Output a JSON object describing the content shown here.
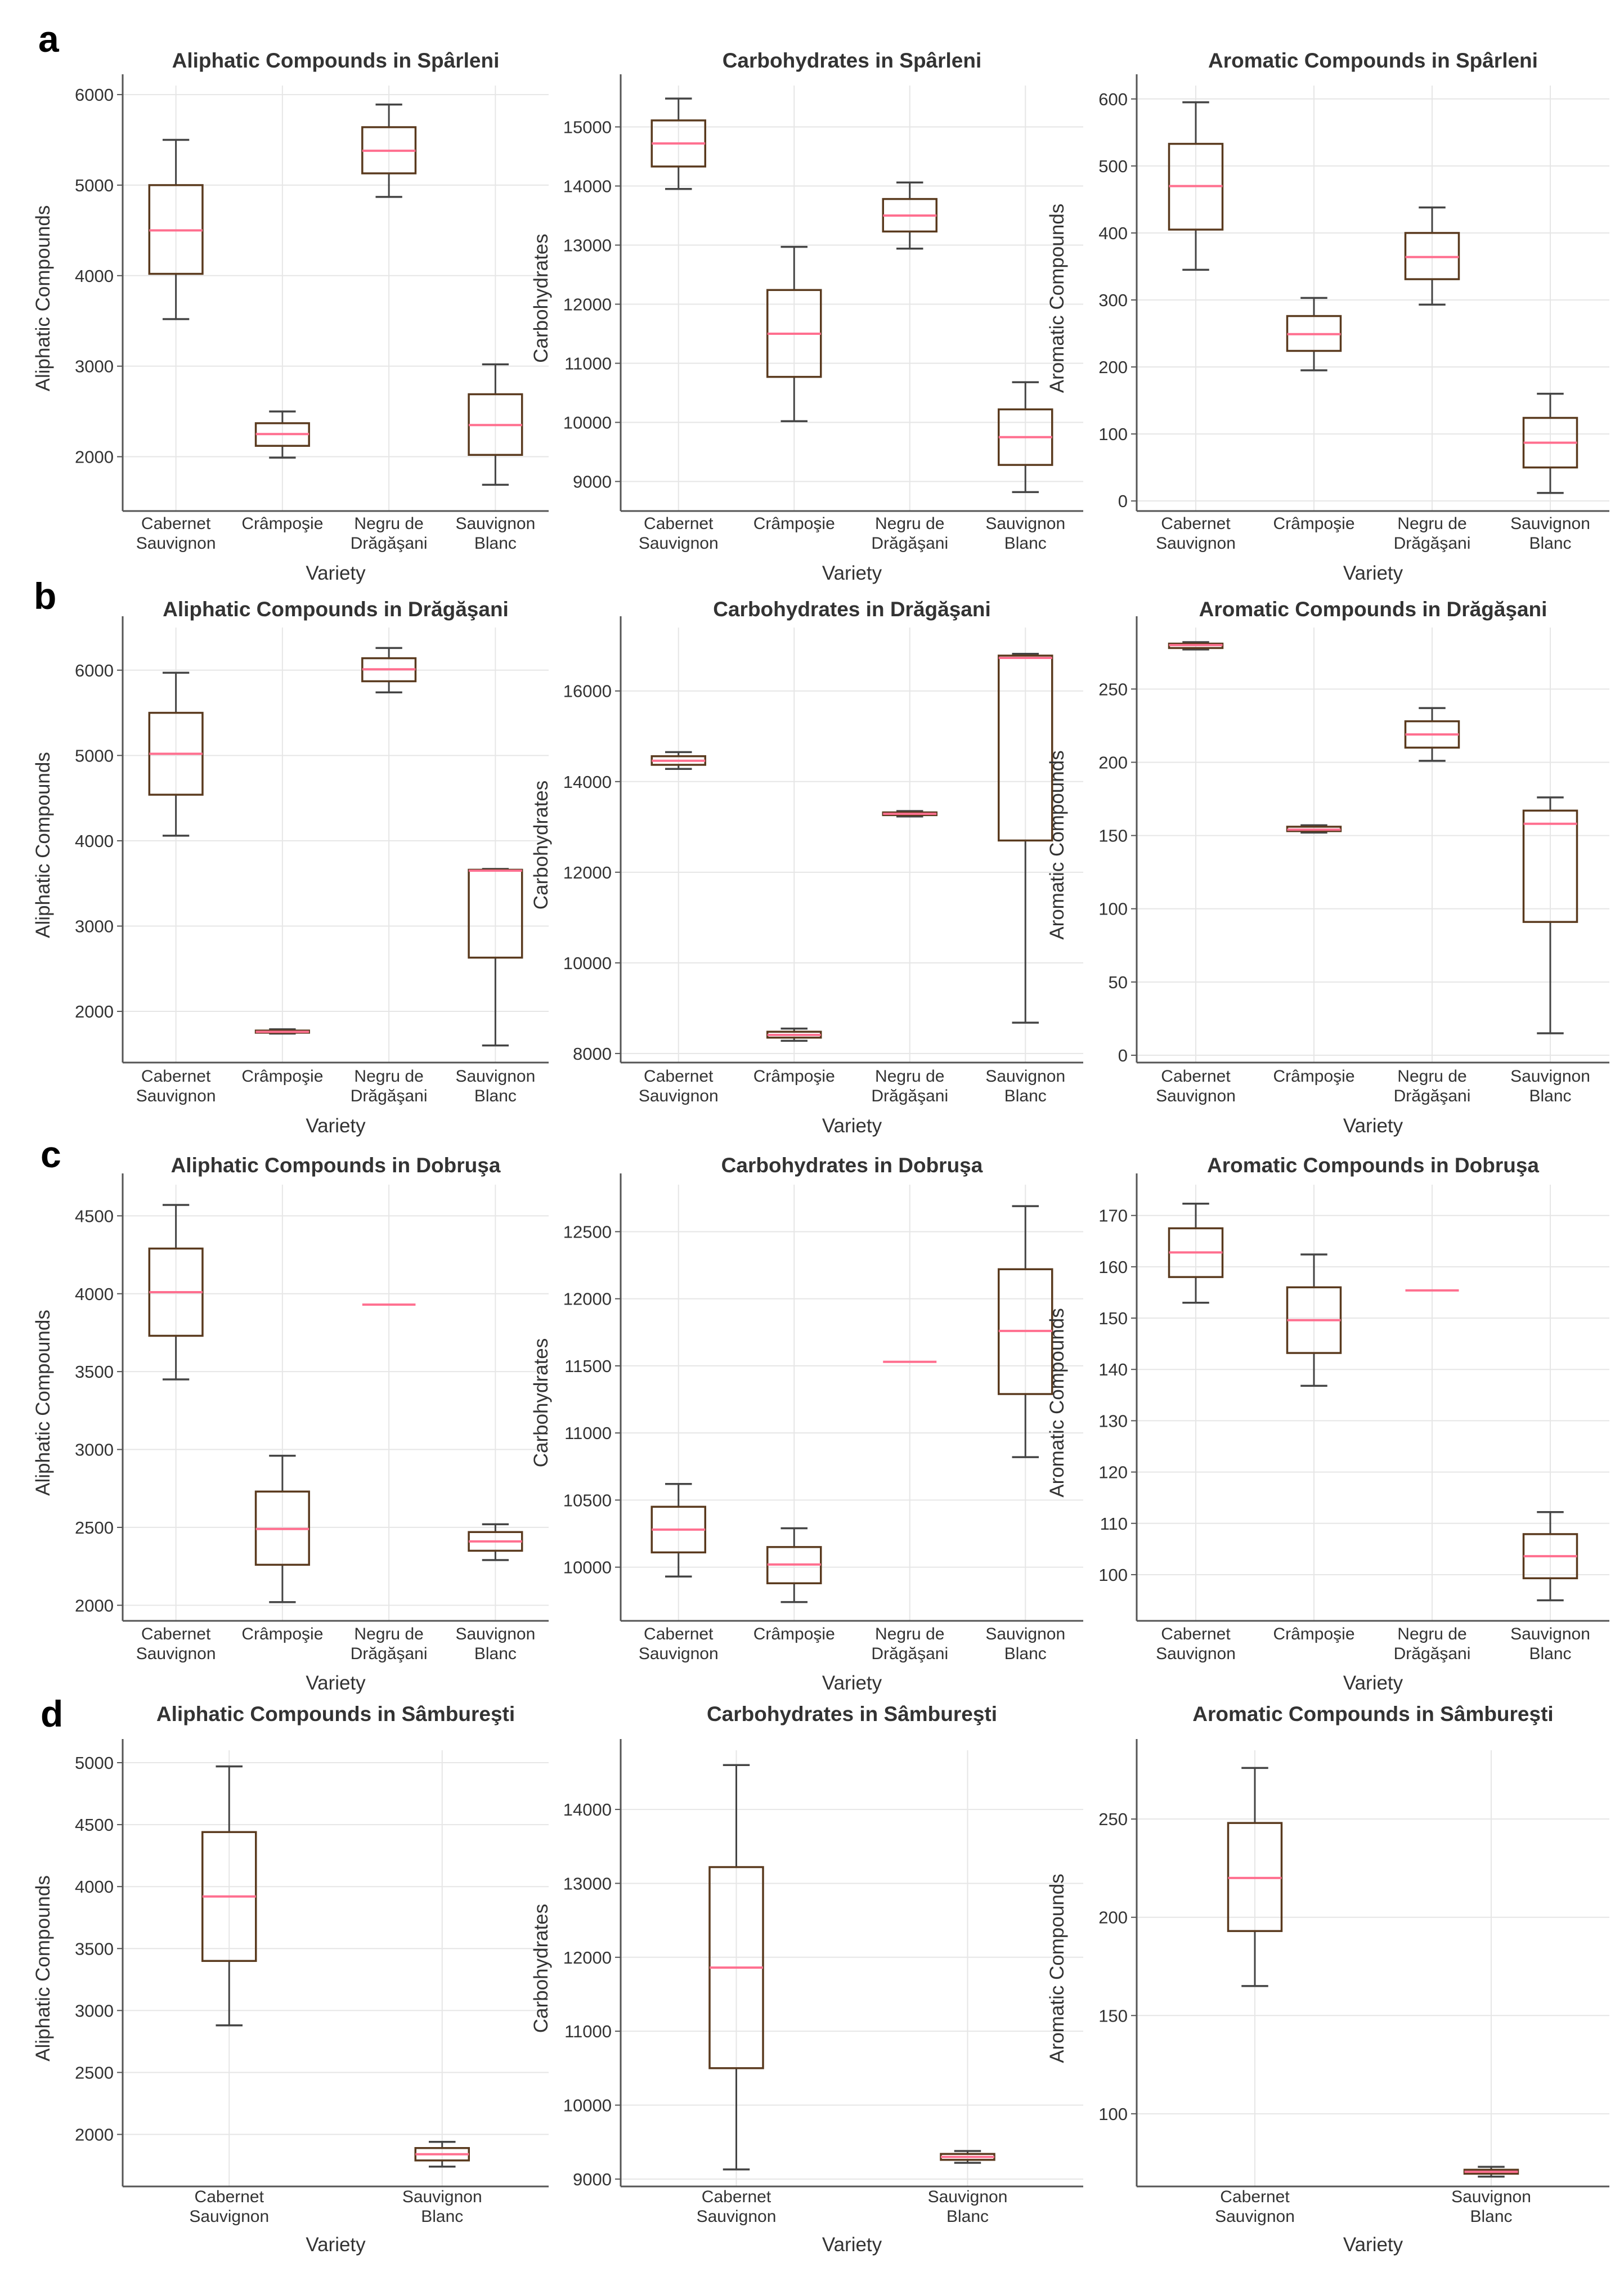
{
  "colors": {
    "box": "#5a3a1e",
    "median": "#ff6f8f",
    "whisker": "#444444",
    "grid": "#e6e6e6"
  },
  "chart_data": [
    {
      "panel": "a",
      "type": "box",
      "title": "Aliphatic Compounds in Spârleni",
      "xlabel": "Variety",
      "ylabel": "Aliphatic Compounds",
      "ylim": [
        1400,
        6100
      ],
      "yticks": [
        2000,
        3000,
        4000,
        5000,
        6000
      ],
      "categories": [
        "Cabernet Sauvignon",
        "Crâmpoşie",
        "Negru de Drăgăşani",
        "Sauvignon Blanc"
      ],
      "boxes": [
        {
          "min": 3520,
          "q1": 4020,
          "median": 4500,
          "q3": 5000,
          "max": 5500
        },
        {
          "min": 1990,
          "q1": 2120,
          "median": 2250,
          "q3": 2370,
          "max": 2500
        },
        {
          "min": 4870,
          "q1": 5130,
          "median": 5380,
          "q3": 5640,
          "max": 5890
        },
        {
          "min": 1690,
          "q1": 2020,
          "median": 2350,
          "q3": 2690,
          "max": 3020
        }
      ]
    },
    {
      "panel": "a",
      "type": "box",
      "title": "Carbohydrates in Spârleni",
      "xlabel": "Variety",
      "ylabel": "Carbohydrates",
      "ylim": [
        8500,
        15700
      ],
      "yticks": [
        9000,
        10000,
        11000,
        12000,
        13000,
        14000,
        15000
      ],
      "categories": [
        "Cabernet Sauvignon",
        "Crâmpoşie",
        "Negru de Drăgăşani",
        "Sauvignon Blanc"
      ],
      "boxes": [
        {
          "min": 13950,
          "q1": 14330,
          "median": 14720,
          "q3": 15110,
          "max": 15480
        },
        {
          "min": 10020,
          "q1": 10770,
          "median": 11500,
          "q3": 12240,
          "max": 12970
        },
        {
          "min": 12940,
          "q1": 13230,
          "median": 13500,
          "q3": 13780,
          "max": 14060
        },
        {
          "min": 8820,
          "q1": 9280,
          "median": 9750,
          "q3": 10220,
          "max": 10680
        }
      ]
    },
    {
      "panel": "a",
      "type": "box",
      "title": "Aromatic Compounds in Spârleni",
      "xlabel": "Variety",
      "ylabel": "Aromatic Compounds",
      "ylim": [
        -15,
        620
      ],
      "yticks": [
        0,
        100,
        200,
        300,
        400,
        500,
        600
      ],
      "categories": [
        "Cabernet Sauvignon",
        "Crâmpoşie",
        "Negru de Drăgăşani",
        "Sauvignon Blanc"
      ],
      "boxes": [
        {
          "min": 345,
          "q1": 405,
          "median": 470,
          "q3": 533,
          "max": 595
        },
        {
          "min": 195,
          "q1": 224,
          "median": 249,
          "q3": 276,
          "max": 303
        },
        {
          "min": 293,
          "q1": 331,
          "median": 364,
          "q3": 400,
          "max": 438
        },
        {
          "min": 12,
          "q1": 50,
          "median": 87,
          "q3": 124,
          "max": 160
        }
      ]
    },
    {
      "panel": "b",
      "type": "box",
      "title": "Aliphatic Compounds in Drăgăşani",
      "xlabel": "Variety",
      "ylabel": "Aliphatic Compounds",
      "ylim": [
        1400,
        6500
      ],
      "yticks": [
        2000,
        3000,
        4000,
        5000,
        6000
      ],
      "categories": [
        "Cabernet Sauvignon",
        "Crâmpoşie",
        "Negru de Drăgăşani",
        "Sauvignon Blanc"
      ],
      "boxes": [
        {
          "min": 4060,
          "q1": 4540,
          "median": 5020,
          "q3": 5500,
          "max": 5970
        },
        {
          "min": 1740,
          "q1": 1750,
          "median": 1760,
          "q3": 1775,
          "max": 1790
        },
        {
          "min": 5740,
          "q1": 5870,
          "median": 6010,
          "q3": 6140,
          "max": 6260
        },
        {
          "min": 1600,
          "q1": 2630,
          "median": 3650,
          "q3": 3660,
          "max": 3670
        }
      ]
    },
    {
      "panel": "b",
      "type": "box",
      "title": "Carbohydrates in Drăgăşani",
      "xlabel": "Variety",
      "ylabel": "Carbohydrates",
      "ylim": [
        7800,
        17400
      ],
      "yticks": [
        8000,
        10000,
        12000,
        14000,
        16000
      ],
      "categories": [
        "Cabernet Sauvignon",
        "Crâmpoşie",
        "Negru de Drăgăşani",
        "Sauvignon Blanc"
      ],
      "boxes": [
        {
          "min": 14280,
          "q1": 14370,
          "median": 14460,
          "q3": 14560,
          "max": 14650
        },
        {
          "min": 8280,
          "q1": 8350,
          "median": 8410,
          "q3": 8480,
          "max": 8550
        },
        {
          "min": 13230,
          "q1": 13260,
          "median": 13290,
          "q3": 13320,
          "max": 13350
        },
        {
          "min": 8680,
          "q1": 12700,
          "median": 16730,
          "q3": 16780,
          "max": 16820
        }
      ]
    },
    {
      "panel": "b",
      "type": "box",
      "title": "Aromatic Compounds in Drăgăşani",
      "xlabel": "Variety",
      "ylabel": "Aromatic Compounds",
      "ylim": [
        -5,
        292
      ],
      "yticks": [
        0,
        50,
        100,
        150,
        200,
        250
      ],
      "categories": [
        "Cabernet Sauvignon",
        "Crâmpoşie",
        "Negru de Drăgăşani",
        "Sauvignon Blanc"
      ],
      "boxes": [
        {
          "min": 277,
          "q1": 278,
          "median": 280,
          "q3": 281,
          "max": 282
        },
        {
          "min": 152,
          "q1": 153,
          "median": 154,
          "q3": 156,
          "max": 157
        },
        {
          "min": 201,
          "q1": 210,
          "median": 219,
          "q3": 228,
          "max": 237
        },
        {
          "min": 15,
          "q1": 91,
          "median": 158,
          "q3": 167,
          "max": 176
        }
      ]
    },
    {
      "panel": "c",
      "type": "box",
      "title": "Aliphatic Compounds in Dobruşa",
      "xlabel": "Variety",
      "ylabel": "Aliphatic Compounds",
      "ylim": [
        1900,
        4700
      ],
      "yticks": [
        2000,
        2500,
        3000,
        3500,
        4000,
        4500
      ],
      "categories": [
        "Cabernet Sauvignon",
        "Crâmpoşie",
        "Negru de Drăgăşani",
        "Sauvignon Blanc"
      ],
      "boxes": [
        {
          "min": 3450,
          "q1": 3730,
          "median": 4010,
          "q3": 4290,
          "max": 4570
        },
        {
          "min": 2020,
          "q1": 2260,
          "median": 2490,
          "q3": 2730,
          "max": 2960
        },
        {
          "min": 3930,
          "q1": 3930,
          "median": 3930,
          "q3": 3930,
          "max": 3930
        },
        {
          "min": 2290,
          "q1": 2350,
          "median": 2410,
          "q3": 2470,
          "max": 2520
        }
      ]
    },
    {
      "panel": "c",
      "type": "box",
      "title": "Carbohydrates in Dobruşa",
      "xlabel": "Variety",
      "ylabel": "Carbohydrates",
      "ylim": [
        9600,
        12850
      ],
      "yticks": [
        10000,
        10500,
        11000,
        11500,
        12000,
        12500
      ],
      "categories": [
        "Cabernet Sauvignon",
        "Crâmpoşie",
        "Negru de Drăgăşani",
        "Sauvignon Blanc"
      ],
      "boxes": [
        {
          "min": 9930,
          "q1": 10110,
          "median": 10280,
          "q3": 10450,
          "max": 10620
        },
        {
          "min": 9740,
          "q1": 9880,
          "median": 10020,
          "q3": 10150,
          "max": 10290
        },
        {
          "min": 11530,
          "q1": 11530,
          "median": 11530,
          "q3": 11530,
          "max": 11530
        },
        {
          "min": 10820,
          "q1": 11290,
          "median": 11760,
          "q3": 12220,
          "max": 12690
        }
      ]
    },
    {
      "panel": "c",
      "type": "box",
      "title": "Aromatic Compounds in Dobruşa",
      "xlabel": "Variety",
      "ylabel": "Aromatic Compounds",
      "ylim": [
        91,
        176
      ],
      "yticks": [
        100,
        110,
        120,
        130,
        140,
        150,
        160,
        170
      ],
      "categories": [
        "Cabernet Sauvignon",
        "Crâmpoşie",
        "Negru de Drăgăşani",
        "Sauvignon Blanc"
      ],
      "boxes": [
        {
          "min": 153,
          "q1": 158,
          "median": 162.8,
          "q3": 167.5,
          "max": 172.3
        },
        {
          "min": 136.8,
          "q1": 143.2,
          "median": 149.6,
          "q3": 156,
          "max": 162.4
        },
        {
          "min": 155.4,
          "q1": 155.4,
          "median": 155.4,
          "q3": 155.4,
          "max": 155.4
        },
        {
          "min": 95,
          "q1": 99.3,
          "median": 103.6,
          "q3": 107.9,
          "max": 112.2
        }
      ]
    },
    {
      "panel": "d",
      "type": "box",
      "title": "Aliphatic Compounds in Sâmbureşti",
      "xlabel": "Variety",
      "ylabel": "Aliphatic Compounds",
      "ylim": [
        1580,
        5100
      ],
      "yticks": [
        2000,
        2500,
        3000,
        3500,
        4000,
        4500,
        5000
      ],
      "categories": [
        "Cabernet Sauvignon",
        "Sauvignon Blanc"
      ],
      "boxes": [
        {
          "min": 2880,
          "q1": 3400,
          "median": 3920,
          "q3": 4440,
          "max": 4970
        },
        {
          "min": 1740,
          "q1": 1790,
          "median": 1840,
          "q3": 1890,
          "max": 1940
        }
      ]
    },
    {
      "panel": "d",
      "type": "box",
      "title": "Carbohydrates in Sâmbureşti",
      "xlabel": "Variety",
      "ylabel": "Carbohydrates",
      "ylim": [
        8900,
        14800
      ],
      "yticks": [
        9000,
        10000,
        11000,
        12000,
        13000,
        14000
      ],
      "categories": [
        "Cabernet Sauvignon",
        "Sauvignon Blanc"
      ],
      "boxes": [
        {
          "min": 9130,
          "q1": 10500,
          "median": 11860,
          "q3": 13220,
          "max": 14600
        },
        {
          "min": 9220,
          "q1": 9260,
          "median": 9300,
          "q3": 9340,
          "max": 9380
        }
      ]
    },
    {
      "panel": "d",
      "type": "box",
      "title": "Aromatic Compounds in Sâmbureşti",
      "xlabel": "Variety",
      "ylabel": "Aromatic Compounds",
      "ylim": [
        63,
        285
      ],
      "yticks": [
        100,
        150,
        200,
        250
      ],
      "categories": [
        "Cabernet Sauvignon",
        "Sauvignon Blanc"
      ],
      "boxes": [
        {
          "min": 165,
          "q1": 193,
          "median": 220,
          "q3": 248,
          "max": 276
        },
        {
          "min": 68,
          "q1": 69.5,
          "median": 70.5,
          "q3": 71.5,
          "max": 73
        }
      ]
    }
  ]
}
